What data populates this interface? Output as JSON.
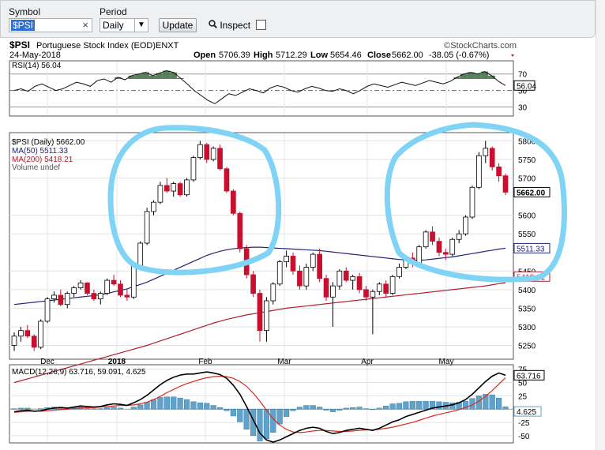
{
  "toolbar": {
    "symbol_label": "Symbol",
    "symbol_value": "$PSI",
    "period_label": "Period",
    "period_value": "Daily",
    "update_label": "Update",
    "inspect_label": "Inspect",
    "clear_icon": "close-icon",
    "inspect_icon": "magnifier-icon"
  },
  "header": {
    "symbol_title": "$PSI",
    "name": "Portuguese Stock Index (EOD)",
    "exchange": "ENXT",
    "source": "©StockCharts.com",
    "date": "24-May-2018",
    "open_label": "Open",
    "open": "5706.39",
    "high_label": "High",
    "high": "5712.29",
    "low_label": "Low",
    "low": "5654.46",
    "close_label": "Close",
    "close": "5662.00",
    "change": "-38.05 (-0.67%)"
  },
  "colors": {
    "up": "#ffffff",
    "down": "#c8102e",
    "ma50": "#1f237a",
    "ma200": "#b01e2f",
    "macd": "#000000",
    "signal": "#d62a1e",
    "histogram": "#5fa3cc",
    "rsi_fill": "#3c6b3c",
    "annotation": "#7fd3f5"
  },
  "chart_data": [
    {
      "type": "line",
      "title": "RSI(14) 56.04",
      "series": [
        {
          "name": "RSI(14)",
          "values": [
            50,
            52,
            49,
            55,
            58,
            54,
            50,
            52,
            56,
            60,
            58,
            55,
            62,
            64,
            60,
            66,
            63,
            68,
            70,
            72,
            68,
            71,
            74,
            72,
            65,
            58,
            50,
            44,
            38,
            34,
            40,
            46,
            44,
            48,
            52,
            50,
            47,
            53,
            56,
            54,
            50,
            48,
            52,
            55,
            53,
            50,
            49,
            52,
            50,
            46,
            50,
            55,
            58,
            56,
            54,
            57,
            60,
            58,
            56,
            59,
            62,
            60,
            58,
            61,
            66,
            70,
            72,
            70,
            73,
            68,
            61,
            56
          ]
        }
      ],
      "ylim": [
        20,
        85
      ],
      "y_ticks": [
        "70",
        "50",
        "30"
      ],
      "last_value": "56.04",
      "reference_lines": [
        70,
        30
      ]
    },
    {
      "type": "candlestick",
      "title": "$PSI (Daily) 5662.00",
      "legend": [
        {
          "name": "$PSI (Daily) 5662.00",
          "color": "#000000"
        },
        {
          "name": "MA(50) 5511.33",
          "color": "#1f237a"
        },
        {
          "name": "MA(200) 5418.21",
          "color": "#b01e2f"
        },
        {
          "name": "Volume undef",
          "color": "#555555"
        }
      ],
      "ohlc": [
        [
          5250,
          5285,
          5235,
          5275
        ],
        [
          5275,
          5300,
          5260,
          5290
        ],
        [
          5290,
          5305,
          5270,
          5275
        ],
        [
          5275,
          5280,
          5235,
          5245
        ],
        [
          5245,
          5320,
          5240,
          5315
        ],
        [
          5315,
          5380,
          5310,
          5375
        ],
        [
          5375,
          5395,
          5365,
          5385
        ],
        [
          5385,
          5400,
          5355,
          5360
        ],
        [
          5360,
          5395,
          5350,
          5390
        ],
        [
          5390,
          5410,
          5380,
          5405
        ],
        [
          5405,
          5425,
          5400,
          5418
        ],
        [
          5418,
          5420,
          5385,
          5390
        ],
        [
          5390,
          5400,
          5370,
          5375
        ],
        [
          5375,
          5395,
          5360,
          5390
        ],
        [
          5390,
          5430,
          5385,
          5425
        ],
        [
          5425,
          5440,
          5410,
          5415
        ],
        [
          5415,
          5425,
          5380,
          5385
        ],
        [
          5385,
          5400,
          5370,
          5380
        ],
        [
          5380,
          5470,
          5375,
          5465
        ],
        [
          5465,
          5530,
          5460,
          5525
        ],
        [
          5525,
          5620,
          5520,
          5610
        ],
        [
          5610,
          5640,
          5600,
          5635
        ],
        [
          5635,
          5690,
          5630,
          5680
        ],
        [
          5680,
          5700,
          5660,
          5665
        ],
        [
          5665,
          5690,
          5650,
          5685
        ],
        [
          5685,
          5690,
          5650,
          5655
        ],
        [
          5655,
          5700,
          5650,
          5695
        ],
        [
          5695,
          5760,
          5690,
          5755
        ],
        [
          5755,
          5800,
          5750,
          5790
        ],
        [
          5790,
          5795,
          5740,
          5750
        ],
        [
          5750,
          5785,
          5745,
          5780
        ],
        [
          5780,
          5790,
          5720,
          5725
        ],
        [
          5725,
          5730,
          5660,
          5665
        ],
        [
          5665,
          5670,
          5600,
          5605
        ],
        [
          5605,
          5610,
          5500,
          5510
        ],
        [
          5510,
          5520,
          5430,
          5440
        ],
        [
          5440,
          5450,
          5380,
          5390
        ],
        [
          5390,
          5400,
          5260,
          5290
        ],
        [
          5290,
          5380,
          5260,
          5370
        ],
        [
          5370,
          5420,
          5360,
          5415
        ],
        [
          5415,
          5480,
          5410,
          5475
        ],
        [
          5475,
          5505,
          5460,
          5490
        ],
        [
          5490,
          5500,
          5440,
          5450
        ],
        [
          5450,
          5465,
          5400,
          5410
        ],
        [
          5410,
          5470,
          5400,
          5460
        ],
        [
          5460,
          5500,
          5450,
          5495
        ],
        [
          5495,
          5510,
          5420,
          5430
        ],
        [
          5430,
          5440,
          5370,
          5380
        ],
        [
          5380,
          5420,
          5300,
          5410
        ],
        [
          5410,
          5455,
          5400,
          5450
        ],
        [
          5450,
          5460,
          5420,
          5425
        ],
        [
          5425,
          5440,
          5400,
          5435
        ],
        [
          5435,
          5445,
          5390,
          5400
        ],
        [
          5400,
          5410,
          5370,
          5380
        ],
        [
          5380,
          5400,
          5280,
          5395
        ],
        [
          5395,
          5420,
          5385,
          5415
        ],
        [
          5415,
          5425,
          5380,
          5390
        ],
        [
          5390,
          5440,
          5385,
          5435
        ],
        [
          5435,
          5470,
          5430,
          5460
        ],
        [
          5460,
          5490,
          5455,
          5485
        ],
        [
          5485,
          5500,
          5460,
          5470
        ],
        [
          5470,
          5520,
          5465,
          5515
        ],
        [
          5515,
          5560,
          5510,
          5555
        ],
        [
          5555,
          5570,
          5520,
          5530
        ],
        [
          5530,
          5540,
          5490,
          5500
        ],
        [
          5500,
          5510,
          5480,
          5495
        ],
        [
          5495,
          5540,
          5490,
          5535
        ],
        [
          5535,
          5560,
          5525,
          5550
        ],
        [
          5550,
          5600,
          5545,
          5595
        ],
        [
          5595,
          5680,
          5590,
          5675
        ],
        [
          5675,
          5770,
          5670,
          5760
        ],
        [
          5760,
          5800,
          5740,
          5780
        ],
        [
          5780,
          5785,
          5720,
          5730
        ],
        [
          5730,
          5740,
          5690,
          5706
        ],
        [
          5706,
          5712,
          5654,
          5662
        ]
      ],
      "ma50": [
        5360,
        5362,
        5364,
        5366,
        5368,
        5370,
        5372,
        5374,
        5376,
        5378,
        5380,
        5382,
        5384,
        5386,
        5390,
        5394,
        5398,
        5402,
        5408,
        5414,
        5420,
        5428,
        5436,
        5444,
        5452,
        5460,
        5468,
        5476,
        5484,
        5492,
        5498,
        5503,
        5507,
        5510,
        5512,
        5513,
        5514,
        5514,
        5513,
        5512,
        5511,
        5510,
        5509,
        5508,
        5507,
        5506,
        5505,
        5503,
        5501,
        5499,
        5497,
        5495,
        5493,
        5491,
        5489,
        5487,
        5485,
        5483,
        5481,
        5480,
        5479,
        5479,
        5480,
        5482,
        5484,
        5486,
        5488,
        5491,
        5494,
        5497,
        5500,
        5503,
        5506,
        5509,
        5511.33
      ],
      "ma200": [
        5150,
        5155,
        5160,
        5165,
        5170,
        5175,
        5180,
        5185,
        5190,
        5195,
        5200,
        5205,
        5210,
        5215,
        5220,
        5225,
        5230,
        5235,
        5240,
        5245,
        5250,
        5256,
        5262,
        5268,
        5274,
        5280,
        5286,
        5292,
        5298,
        5304,
        5310,
        5315,
        5320,
        5324,
        5328,
        5332,
        5335,
        5338,
        5341,
        5344,
        5347,
        5350,
        5352,
        5354,
        5356,
        5358,
        5360,
        5362,
        5364,
        5366,
        5368,
        5370,
        5372,
        5374,
        5376,
        5378,
        5380,
        5382,
        5384,
        5386,
        5388,
        5390,
        5392,
        5394,
        5396,
        5398,
        5400,
        5402,
        5404,
        5406,
        5408,
        5410,
        5413,
        5416,
        5418.21
      ],
      "ylim": [
        5215,
        5820
      ],
      "y_ticks": [
        "5800",
        "5750",
        "5700",
        "5600",
        "5550",
        "5450",
        "5400",
        "5350",
        "5300",
        "5250"
      ],
      "last_close_label": "5662.00",
      "ma50_label": "5511.33",
      "ma200_label": "5418.21",
      "x_ticks": [
        "Dec",
        "2018",
        "Feb",
        "Mar",
        "Apr",
        "May"
      ]
    },
    {
      "type": "line",
      "title": "MACD(12,26,9) 63.716, 59.091, 4.625",
      "series": [
        {
          "name": "MACD(12,26,9)",
          "values": [
            -5,
            -3,
            -2,
            -4,
            -3,
            0,
            2,
            3,
            2,
            4,
            6,
            5,
            4,
            5,
            8,
            10,
            9,
            7,
            12,
            18,
            26,
            36,
            46,
            54,
            60,
            64,
            66,
            66,
            68,
            70,
            68,
            65,
            58,
            45,
            28,
            5,
            -20,
            -45,
            -58,
            -62,
            -58,
            -52,
            -46,
            -40,
            -36,
            -34,
            -36,
            -42,
            -46,
            -44,
            -40,
            -38,
            -36,
            -38,
            -40,
            -36,
            -30,
            -24,
            -20,
            -14,
            -10,
            -6,
            -2,
            2,
            4,
            6,
            8,
            12,
            18,
            28,
            40,
            52,
            62,
            68,
            63.716
          ]
        },
        {
          "name": "Signal",
          "values": [
            -6,
            -5,
            -4,
            -4,
            -4,
            -3,
            -2,
            -1,
            0,
            1,
            2,
            3,
            3,
            4,
            5,
            6,
            7,
            7,
            8,
            10,
            13,
            18,
            24,
            31,
            37,
            43,
            48,
            52,
            56,
            59,
            61,
            62,
            61,
            58,
            52,
            43,
            30,
            15,
            -2,
            -18,
            -30,
            -38,
            -43,
            -44,
            -43,
            -41,
            -40,
            -40,
            -41,
            -42,
            -42,
            -41,
            -40,
            -39,
            -39,
            -38,
            -36,
            -34,
            -31,
            -28,
            -25,
            -21,
            -17,
            -13,
            -10,
            -7,
            -4,
            -1,
            3,
            8,
            15,
            24,
            35,
            47,
            59.091
          ]
        },
        {
          "name": "Histogram",
          "values": [
            1,
            2,
            2,
            0,
            1,
            3,
            4,
            4,
            2,
            3,
            4,
            2,
            1,
            1,
            3,
            4,
            2,
            0,
            4,
            8,
            13,
            18,
            22,
            23,
            23,
            21,
            18,
            14,
            12,
            11,
            7,
            3,
            -3,
            -13,
            -24,
            -38,
            -50,
            -60,
            -56,
            -44,
            -28,
            -14,
            -3,
            4,
            7,
            7,
            4,
            -2,
            -5,
            -2,
            2,
            3,
            4,
            1,
            -1,
            2,
            6,
            10,
            11,
            14,
            15,
            15,
            15,
            15,
            14,
            13,
            12,
            13,
            15,
            20,
            25,
            28,
            27,
            21,
            4.625
          ]
        }
      ],
      "ylim": [
        -62,
        82
      ],
      "y_ticks": [
        "75",
        "50",
        "25",
        "-25",
        "-50"
      ],
      "last_labels": [
        "63.716",
        "4.625"
      ]
    }
  ]
}
